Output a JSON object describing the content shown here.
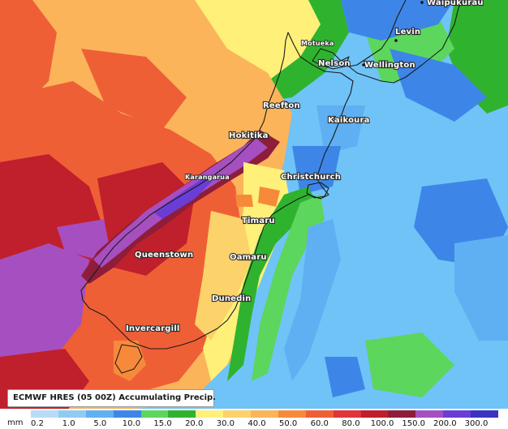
{
  "legend": {
    "title": "ECMWF HRES (05 00Z) Accumulating Precip.",
    "unit": "mm",
    "ticks": [
      "0.2",
      "1.0",
      "5.0",
      "10.0",
      "15.0",
      "20.0",
      "30.0",
      "40.0",
      "50.0",
      "60.0",
      "80.0",
      "100.0",
      "150.0",
      "200.0",
      "300.0"
    ],
    "colors": [
      "#b8dcf7",
      "#8fccf4",
      "#5fb0f2",
      "#3d86e8",
      "#5cd65c",
      "#2fb32f",
      "#fff07a",
      "#fcd26a",
      "#fbb45a",
      "#f78a3a",
      "#ef5f36",
      "#e0333a",
      "#c01f2c",
      "#8e1d3a",
      "#a64fc0",
      "#6a3dd6",
      "#3b33c2"
    ]
  },
  "places": [
    {
      "name": "Waipukurau"
    },
    {
      "name": "Levin"
    },
    {
      "name": "Motueka"
    },
    {
      "name": "Nelson"
    },
    {
      "name": "Wellington"
    },
    {
      "name": "Reefton"
    },
    {
      "name": "Kaikoura"
    },
    {
      "name": "Hokitika"
    },
    {
      "name": "Christchurch"
    },
    {
      "name": "Karangarua"
    },
    {
      "name": "Timaru"
    },
    {
      "name": "Queenstown"
    },
    {
      "name": "Oamaru"
    },
    {
      "name": "Dunedin"
    },
    {
      "name": "Invercargill"
    }
  ]
}
